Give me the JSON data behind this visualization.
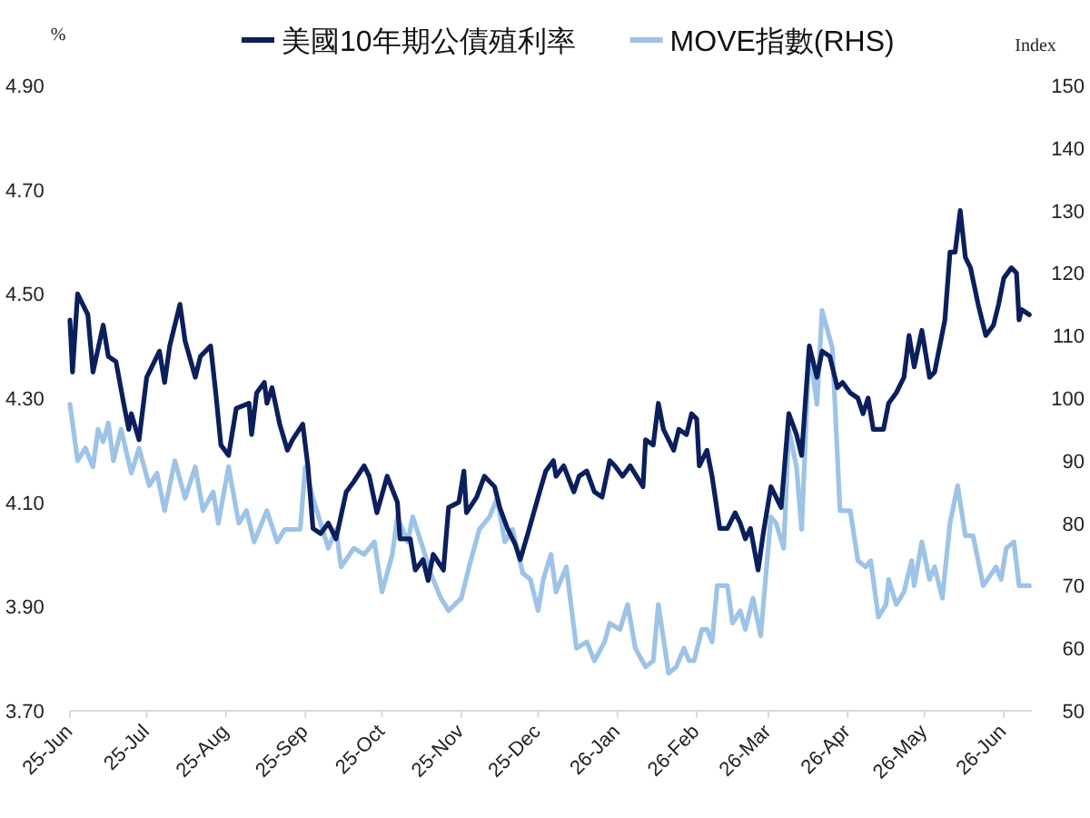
{
  "chart_data": {
    "type": "line",
    "ylabel": "%",
    "y2label": "Index",
    "legend": "top",
    "xlim": [
      "2025-06-01",
      "2026-06-12"
    ],
    "xticks": [
      {
        "value": "2025-06-01",
        "label": "25-Jun"
      },
      {
        "value": "2025-07-01",
        "label": "25-Jul"
      },
      {
        "value": "2025-08-01",
        "label": "25-Aug"
      },
      {
        "value": "2025-09-01",
        "label": "25-Sep"
      },
      {
        "value": "2025-10-01",
        "label": "25-Oct"
      },
      {
        "value": "2025-11-01",
        "label": "25-Nov"
      },
      {
        "value": "2025-12-01",
        "label": "25-Dec"
      },
      {
        "value": "2026-01-01",
        "label": "26-Jan"
      },
      {
        "value": "2026-02-01",
        "label": "26-Feb"
      },
      {
        "value": "2026-03-01",
        "label": "26-Mar"
      },
      {
        "value": "2026-04-01",
        "label": "26-Apr"
      },
      {
        "value": "2026-05-01",
        "label": "26-May"
      },
      {
        "value": "2026-06-01",
        "label": "26-Jun"
      }
    ],
    "ylim": [
      3.7,
      4.9
    ],
    "yticks": [
      {
        "value": 3.7,
        "label": "3.70"
      },
      {
        "value": 3.9,
        "label": "3.90"
      },
      {
        "value": 4.1,
        "label": "4.10"
      },
      {
        "value": 4.3,
        "label": "4.30"
      },
      {
        "value": 4.5,
        "label": "4.50"
      },
      {
        "value": 4.7,
        "label": "4.70"
      },
      {
        "value": 4.9,
        "label": "4.90"
      }
    ],
    "y2lim": [
      50,
      150
    ],
    "y2ticks": [
      50,
      60,
      70,
      80,
      90,
      100,
      110,
      120,
      130,
      140,
      150
    ],
    "series": [
      {
        "name": "美國10年期公債殖利率",
        "color": "#0b1f5c",
        "x": [
          "2025-06-01",
          "2025-06-02",
          "2025-06-04",
          "2025-06-08",
          "2025-06-10",
          "2025-06-14",
          "2025-06-16",
          "2025-06-19",
          "2025-06-22",
          "2025-06-24",
          "2025-06-25",
          "2025-06-28",
          "2025-07-01",
          "2025-07-04",
          "2025-07-06",
          "2025-07-08",
          "2025-07-10",
          "2025-07-14",
          "2025-07-16",
          "2025-07-20",
          "2025-07-22",
          "2025-07-26",
          "2025-07-28",
          "2025-07-30",
          "2025-08-02",
          "2025-08-05",
          "2025-08-10",
          "2025-08-11",
          "2025-08-13",
          "2025-08-16",
          "2025-08-17",
          "2025-08-19",
          "2025-08-22",
          "2025-08-25",
          "2025-08-27",
          "2025-08-31",
          "2025-09-02",
          "2025-09-04",
          "2025-09-07",
          "2025-09-10",
          "2025-09-13",
          "2025-09-17",
          "2025-09-20",
          "2025-09-24",
          "2025-09-26",
          "2025-09-29",
          "2025-10-03",
          "2025-10-07",
          "2025-10-08",
          "2025-10-12",
          "2025-10-14",
          "2025-10-17",
          "2025-10-19",
          "2025-10-21",
          "2025-10-25",
          "2025-10-27",
          "2025-10-31",
          "2025-11-02",
          "2025-11-03",
          "2025-11-07",
          "2025-11-10",
          "2025-11-14",
          "2025-11-16",
          "2025-11-19",
          "2025-11-22",
          "2025-11-24",
          "2025-11-27",
          "2025-12-01",
          "2025-12-04",
          "2025-12-07",
          "2025-12-08",
          "2025-12-11",
          "2025-12-15",
          "2025-12-17",
          "2025-12-20",
          "2025-12-23",
          "2025-12-26",
          "2025-12-29",
          "2025-12-31",
          "2026-01-03",
          "2026-01-06",
          "2026-01-11",
          "2026-01-12",
          "2026-01-15",
          "2026-01-17",
          "2026-01-19",
          "2026-01-23",
          "2026-01-25",
          "2026-01-28",
          "2026-01-30",
          "2026-02-01",
          "2026-02-02",
          "2026-02-05",
          "2026-02-07",
          "2026-02-10",
          "2026-02-13",
          "2026-02-16",
          "2026-02-18",
          "2026-02-20",
          "2026-02-22",
          "2026-02-25",
          "2026-02-27",
          "2026-03-02",
          "2026-03-06",
          "2026-03-09",
          "2026-03-12",
          "2026-03-14",
          "2026-03-15",
          "2026-03-17",
          "2026-03-20",
          "2026-03-22",
          "2026-03-25",
          "2026-03-28",
          "2026-03-30",
          "2026-04-02",
          "2026-04-05",
          "2026-04-07",
          "2026-04-09",
          "2026-04-11",
          "2026-04-13",
          "2026-04-15",
          "2026-04-17",
          "2026-04-20",
          "2026-04-23",
          "2026-04-25",
          "2026-04-27",
          "2026-04-30",
          "2026-05-03",
          "2026-05-05",
          "2026-05-09",
          "2026-05-11",
          "2026-05-13",
          "2026-05-15",
          "2026-05-17",
          "2026-05-19",
          "2026-05-22",
          "2026-05-25",
          "2026-05-28",
          "2026-05-30",
          "2026-06-01",
          "2026-06-04",
          "2026-06-06",
          "2026-06-07",
          "2026-06-08",
          "2026-06-11"
        ],
        "values": [
          4.45,
          4.35,
          4.5,
          4.46,
          4.35,
          4.44,
          4.38,
          4.37,
          4.29,
          4.24,
          4.27,
          4.22,
          4.34,
          4.37,
          4.39,
          4.33,
          4.4,
          4.48,
          4.41,
          4.34,
          4.38,
          4.4,
          4.31,
          4.21,
          4.19,
          4.28,
          4.29,
          4.23,
          4.31,
          4.33,
          4.29,
          4.32,
          4.25,
          4.2,
          4.22,
          4.25,
          4.17,
          4.05,
          4.04,
          4.06,
          4.03,
          4.12,
          4.14,
          4.17,
          4.15,
          4.08,
          4.15,
          4.1,
          4.03,
          4.03,
          3.97,
          3.99,
          3.95,
          4.0,
          3.97,
          4.09,
          4.1,
          4.16,
          4.08,
          4.11,
          4.15,
          4.13,
          4.09,
          4.05,
          4.02,
          3.99,
          4.04,
          4.11,
          4.16,
          4.18,
          4.15,
          4.17,
          4.12,
          4.15,
          4.16,
          4.12,
          4.11,
          4.18,
          4.17,
          4.15,
          4.17,
          4.13,
          4.22,
          4.21,
          4.29,
          4.24,
          4.2,
          4.24,
          4.23,
          4.27,
          4.26,
          4.17,
          4.2,
          4.15,
          4.05,
          4.05,
          4.08,
          4.06,
          4.03,
          4.05,
          3.97,
          4.04,
          4.13,
          4.09,
          4.27,
          4.23,
          4.19,
          4.26,
          4.4,
          4.34,
          4.39,
          4.38,
          4.32,
          4.33,
          4.31,
          4.3,
          4.27,
          4.3,
          4.24,
          4.24,
          4.24,
          4.29,
          4.31,
          4.34,
          4.42,
          4.36,
          4.43,
          4.34,
          4.35,
          4.45,
          4.58,
          4.58,
          4.66,
          4.57,
          4.55,
          4.48,
          4.42,
          4.44,
          4.48,
          4.53,
          4.55,
          4.54,
          4.45,
          4.47,
          4.46
        ]
      },
      {
        "name": "MOVE指數(RHS)",
        "color": "#9dc3e6",
        "axis": "y2",
        "x": [
          "2025-06-01",
          "2025-06-04",
          "2025-06-07",
          "2025-06-10",
          "2025-06-12",
          "2025-06-14",
          "2025-06-16",
          "2025-06-18",
          "2025-06-21",
          "2025-06-25",
          "2025-06-28",
          "2025-07-02",
          "2025-07-05",
          "2025-07-08",
          "2025-07-12",
          "2025-07-16",
          "2025-07-20",
          "2025-07-23",
          "2025-07-27",
          "2025-07-29",
          "2025-08-02",
          "2025-08-06",
          "2025-08-09",
          "2025-08-12",
          "2025-08-17",
          "2025-08-21",
          "2025-08-24",
          "2025-08-27",
          "2025-08-30",
          "2025-09-01",
          "2025-09-04",
          "2025-09-07",
          "2025-09-10",
          "2025-09-13",
          "2025-09-15",
          "2025-09-20",
          "2025-09-24",
          "2025-09-28",
          "2025-10-01",
          "2025-10-05",
          "2025-10-07",
          "2025-10-11",
          "2025-10-13",
          "2025-10-17",
          "2025-10-20",
          "2025-10-24",
          "2025-10-27",
          "2025-11-01",
          "2025-11-04",
          "2025-11-08",
          "2025-11-12",
          "2025-11-15",
          "2025-11-18",
          "2025-11-21",
          "2025-11-25",
          "2025-11-28",
          "2025-12-01",
          "2025-12-03",
          "2025-12-06",
          "2025-12-08",
          "2025-12-12",
          "2025-12-16",
          "2025-12-20",
          "2025-12-23",
          "2025-12-27",
          "2025-12-29",
          "2026-01-02",
          "2026-01-05",
          "2026-01-08",
          "2026-01-12",
          "2026-01-15",
          "2026-01-17",
          "2026-01-21",
          "2026-01-24",
          "2026-01-27",
          "2026-01-29",
          "2026-01-31",
          "2026-02-03",
          "2026-02-05",
          "2026-02-07",
          "2026-02-09",
          "2026-02-13",
          "2026-02-15",
          "2026-02-18",
          "2026-02-20",
          "2026-02-23",
          "2026-02-26",
          "2026-03-02",
          "2026-03-04",
          "2026-03-07",
          "2026-03-09",
          "2026-03-12",
          "2026-03-14",
          "2026-03-17",
          "2026-03-19",
          "2026-03-20",
          "2026-03-22",
          "2026-03-24",
          "2026-03-26",
          "2026-03-29",
          "2026-04-02",
          "2026-04-05",
          "2026-04-08",
          "2026-04-10",
          "2026-04-13",
          "2026-04-16",
          "2026-04-17",
          "2026-04-20",
          "2026-04-23",
          "2026-04-26",
          "2026-04-27",
          "2026-04-30",
          "2026-05-03",
          "2026-05-05",
          "2026-05-08",
          "2026-05-11",
          "2026-05-14",
          "2026-05-17",
          "2026-05-20",
          "2026-05-24",
          "2026-05-29",
          "2026-05-31",
          "2026-06-02",
          "2026-06-05",
          "2026-06-07",
          "2026-06-11"
        ],
        "values": [
          99,
          90,
          92,
          89,
          95,
          93,
          96,
          90,
          95,
          88,
          92,
          86,
          88,
          82,
          90,
          84,
          89,
          82,
          85,
          80,
          89,
          80,
          82,
          77,
          82,
          77,
          79,
          79,
          79,
          89,
          84,
          80,
          76,
          79,
          73,
          76,
          75,
          77,
          69,
          75,
          81,
          77,
          81,
          76,
          72,
          68,
          66,
          68,
          73,
          79,
          81,
          84,
          77,
          79,
          72,
          71,
          66,
          71,
          75,
          69,
          73,
          60,
          61,
          58,
          61,
          64,
          63,
          67,
          60,
          57,
          58,
          67,
          56,
          57,
          60,
          58,
          58,
          63,
          63,
          61,
          70,
          70,
          64,
          66,
          63,
          68,
          62,
          81,
          80,
          76,
          95,
          89,
          79,
          108,
          102,
          99,
          114,
          111,
          108,
          82,
          82,
          74,
          73,
          74,
          65,
          67,
          71,
          67,
          69,
          74,
          70,
          77,
          71,
          73,
          68,
          80,
          86,
          78,
          78,
          70,
          73,
          71,
          76,
          77,
          70,
          70
        ]
      }
    ]
  }
}
